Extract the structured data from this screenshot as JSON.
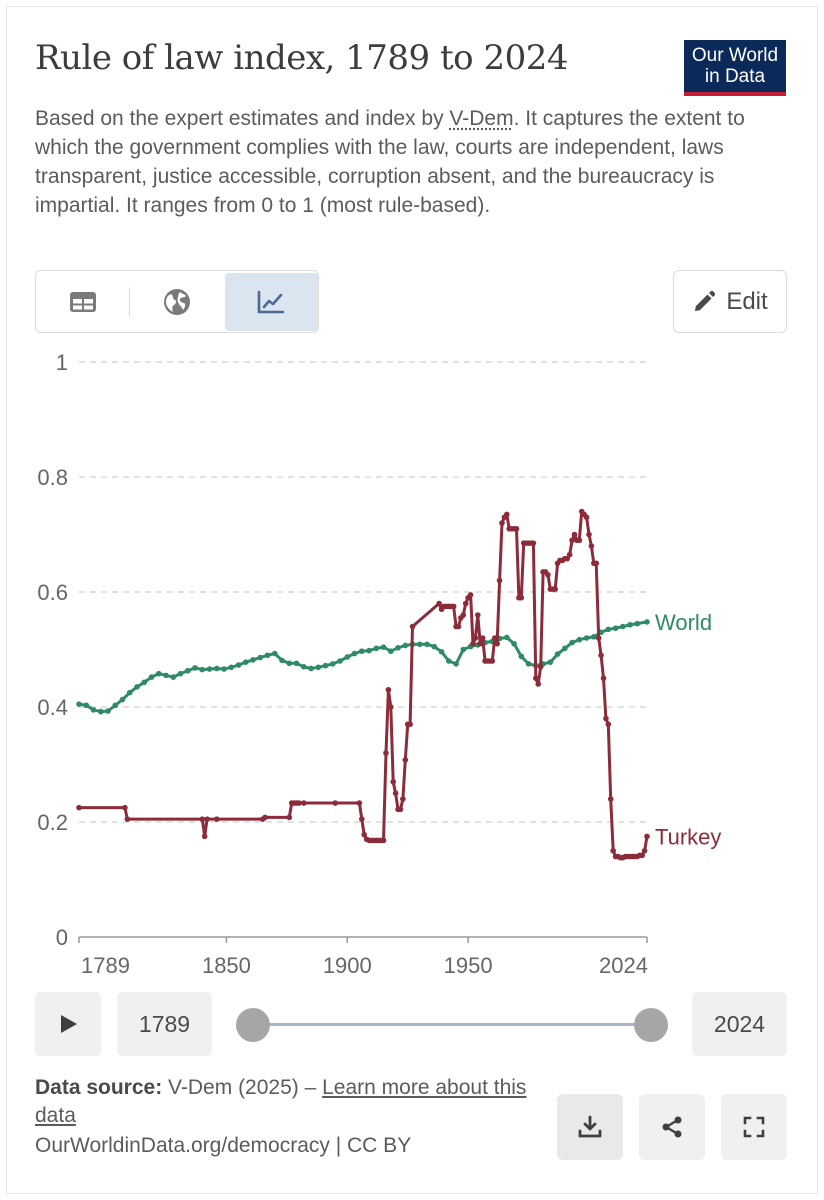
{
  "header": {
    "title": "Rule of law index, 1789 to 2024",
    "subtitle_before": "Based on the expert estimates and index by ",
    "subtitle_link": "V-Dem",
    "subtitle_after": ". It captures the extent to which the government complies with the law, courts are independent, laws transparent, justice accessible, corruption absent, and the bureaucracy is impartial. It ranges from 0 to 1 (most rule-based).",
    "logo_line1": "Our World",
    "logo_line2": "in Data"
  },
  "controls": {
    "tabs": [
      {
        "icon": "table-icon",
        "active": false
      },
      {
        "icon": "globe-icon",
        "active": false
      },
      {
        "icon": "line-chart-icon",
        "active": true
      }
    ],
    "edit_label": "Edit",
    "play_icon": "play-icon",
    "start_year": "1789",
    "end_year": "2024"
  },
  "footer": {
    "source_label": "Data source:",
    "source_text": " V-Dem (2025) – ",
    "learn_more": "Learn more about this data",
    "license": "OurWorldinData.org/democracy | CC BY",
    "actions": [
      "download-icon",
      "share-icon",
      "fullscreen-icon"
    ]
  },
  "colors": {
    "world": "#2e8b66",
    "turkey": "#8c2b3a",
    "grid": "#d9d9d9",
    "axis_text": "#666666",
    "logo_bg": "#0b2a5a",
    "logo_accent": "#c61d36"
  },
  "chart_data": {
    "type": "line",
    "title": "Rule of law index, 1789 to 2024",
    "xlim": [
      1789,
      2024
    ],
    "ylim": [
      0,
      1
    ],
    "x_ticks": [
      "1789",
      "1850",
      "1900",
      "1950",
      "2024"
    ],
    "x_tick_values": [
      1789,
      1850,
      1900,
      1950,
      2024
    ],
    "y_ticks": [
      "0",
      "0.2",
      "0.4",
      "0.6",
      "0.8",
      "1"
    ],
    "y_tick_values": [
      0,
      0.2,
      0.4,
      0.6,
      0.8,
      1
    ],
    "grid": true,
    "legend": "inline-right",
    "series": [
      {
        "name": "World",
        "x": [
          1789,
          1792,
          1795,
          1798,
          1801,
          1804,
          1807,
          1810,
          1813,
          1816,
          1819,
          1822,
          1825,
          1828,
          1831,
          1834,
          1837,
          1840,
          1843,
          1846,
          1849,
          1852,
          1855,
          1858,
          1861,
          1864,
          1867,
          1870,
          1873,
          1876,
          1879,
          1882,
          1885,
          1888,
          1891,
          1894,
          1897,
          1900,
          1903,
          1906,
          1909,
          1912,
          1915,
          1918,
          1921,
          1924,
          1927,
          1930,
          1933,
          1936,
          1939,
          1942,
          1945,
          1948,
          1951,
          1954,
          1957,
          1960,
          1963,
          1966,
          1969,
          1972,
          1975,
          1978,
          1981,
          1984,
          1987,
          1990,
          1993,
          1996,
          1999,
          2002,
          2005,
          2008,
          2011,
          2014,
          2017,
          2020,
          2024
        ],
        "values": [
          0.405,
          0.403,
          0.395,
          0.392,
          0.393,
          0.403,
          0.413,
          0.425,
          0.435,
          0.443,
          0.452,
          0.458,
          0.455,
          0.452,
          0.458,
          0.463,
          0.468,
          0.465,
          0.466,
          0.467,
          0.466,
          0.469,
          0.473,
          0.478,
          0.482,
          0.486,
          0.49,
          0.493,
          0.481,
          0.476,
          0.476,
          0.47,
          0.467,
          0.469,
          0.472,
          0.475,
          0.48,
          0.487,
          0.493,
          0.497,
          0.498,
          0.502,
          0.504,
          0.497,
          0.503,
          0.507,
          0.509,
          0.509,
          0.509,
          0.505,
          0.496,
          0.48,
          0.475,
          0.5,
          0.505,
          0.508,
          0.512,
          0.514,
          0.519,
          0.521,
          0.51,
          0.488,
          0.475,
          0.472,
          0.475,
          0.478,
          0.492,
          0.502,
          0.512,
          0.517,
          0.52,
          0.522,
          0.53,
          0.535,
          0.537,
          0.54,
          0.543,
          0.545,
          0.548
        ]
      },
      {
        "name": "Turkey",
        "x": [
          1789,
          1808,
          1809,
          1840,
          1841,
          1842,
          1846,
          1865,
          1866,
          1876,
          1877,
          1878,
          1879,
          1880,
          1882,
          1895,
          1905,
          1906,
          1907,
          1908,
          1909,
          1910,
          1911,
          1912,
          1913,
          1914,
          1915,
          1916,
          1917,
          1918,
          1919,
          1920,
          1921,
          1922,
          1923,
          1924,
          1925,
          1926,
          1927,
          1938,
          1939,
          1940,
          1941,
          1942,
          1943,
          1944,
          1945,
          1946,
          1947,
          1948,
          1949,
          1950,
          1951,
          1952,
          1953,
          1954,
          1955,
          1956,
          1957,
          1958,
          1959,
          1960,
          1961,
          1962,
          1963,
          1964,
          1965,
          1966,
          1967,
          1968,
          1969,
          1970,
          1971,
          1972,
          1973,
          1974,
          1975,
          1976,
          1977,
          1978,
          1979,
          1980,
          1981,
          1982,
          1983,
          1984,
          1985,
          1986,
          1987,
          1988,
          1989,
          1990,
          1991,
          1992,
          1993,
          1994,
          1995,
          1996,
          1997,
          1998,
          1999,
          2000,
          2001,
          2002,
          2003,
          2004,
          2005,
          2006,
          2007,
          2008,
          2009,
          2010,
          2011,
          2012,
          2013,
          2014,
          2015,
          2016,
          2017,
          2018,
          2019,
          2020,
          2021,
          2022,
          2023,
          2024
        ],
        "values": [
          0.225,
          0.225,
          0.205,
          0.205,
          0.175,
          0.205,
          0.205,
          0.205,
          0.208,
          0.208,
          0.233,
          0.233,
          0.233,
          0.233,
          0.233,
          0.233,
          0.233,
          0.205,
          0.178,
          0.17,
          0.168,
          0.168,
          0.168,
          0.168,
          0.168,
          0.168,
          0.168,
          0.32,
          0.43,
          0.4,
          0.27,
          0.25,
          0.222,
          0.222,
          0.24,
          0.308,
          0.37,
          0.37,
          0.54,
          0.58,
          0.57,
          0.575,
          0.575,
          0.575,
          0.575,
          0.575,
          0.54,
          0.54,
          0.555,
          0.56,
          0.58,
          0.59,
          0.595,
          0.51,
          0.52,
          0.56,
          0.51,
          0.52,
          0.48,
          0.48,
          0.48,
          0.48,
          0.52,
          0.51,
          0.62,
          0.72,
          0.73,
          0.735,
          0.71,
          0.71,
          0.71,
          0.71,
          0.59,
          0.59,
          0.685,
          0.685,
          0.685,
          0.685,
          0.685,
          0.45,
          0.44,
          0.47,
          0.635,
          0.635,
          0.63,
          0.605,
          0.605,
          0.605,
          0.65,
          0.655,
          0.655,
          0.658,
          0.658,
          0.665,
          0.69,
          0.7,
          0.69,
          0.69,
          0.74,
          0.735,
          0.73,
          0.7,
          0.68,
          0.65,
          0.65,
          0.52,
          0.49,
          0.45,
          0.38,
          0.37,
          0.24,
          0.15,
          0.14,
          0.14,
          0.138,
          0.138,
          0.14,
          0.14,
          0.14,
          0.14,
          0.14,
          0.14,
          0.142,
          0.142,
          0.15,
          0.175
        ]
      }
    ]
  }
}
